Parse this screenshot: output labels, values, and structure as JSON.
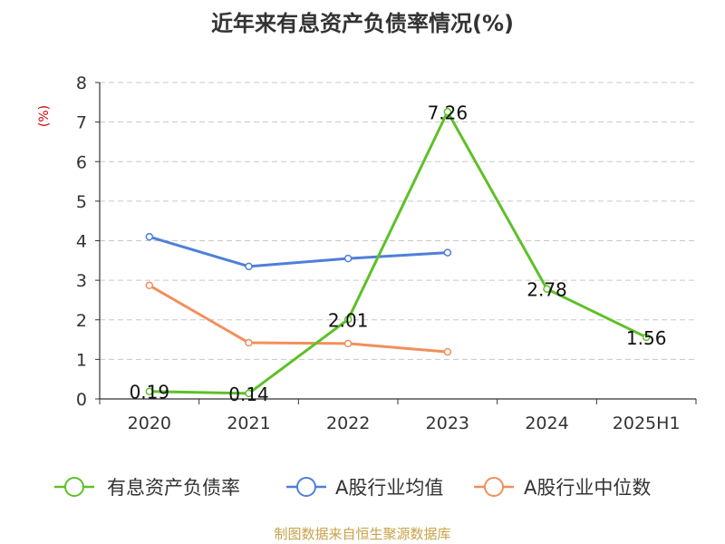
{
  "chart_data": {
    "type": "line",
    "title": "近年来有息资产负债率情况(%)",
    "ylabel": "(%)",
    "categories": [
      "2020",
      "2021",
      "2022",
      "2023",
      "2024",
      "2025H1"
    ],
    "ylim": [
      0,
      8
    ],
    "yticks": [
      0,
      1,
      2,
      3,
      4,
      5,
      6,
      7,
      8
    ],
    "grid": true,
    "legend_position": "bottom",
    "series": [
      {
        "name": "有息资产负债率",
        "color": "#5ec028",
        "values": [
          0.19,
          0.14,
          2.01,
          7.26,
          2.78,
          1.56
        ],
        "labels": [
          "0.19",
          "0.14",
          "2.01",
          "7.26",
          "2.78",
          "1.56"
        ]
      },
      {
        "name": "A股行业均值",
        "color": "#4f7fd9",
        "values": [
          4.1,
          3.35,
          3.55,
          3.7,
          null,
          null
        ]
      },
      {
        "name": "A股行业中位数",
        "color": "#f28f5c",
        "values": [
          2.87,
          1.42,
          1.4,
          1.19,
          null,
          null
        ]
      }
    ]
  },
  "source": "制图数据来自恒生聚源数据库"
}
